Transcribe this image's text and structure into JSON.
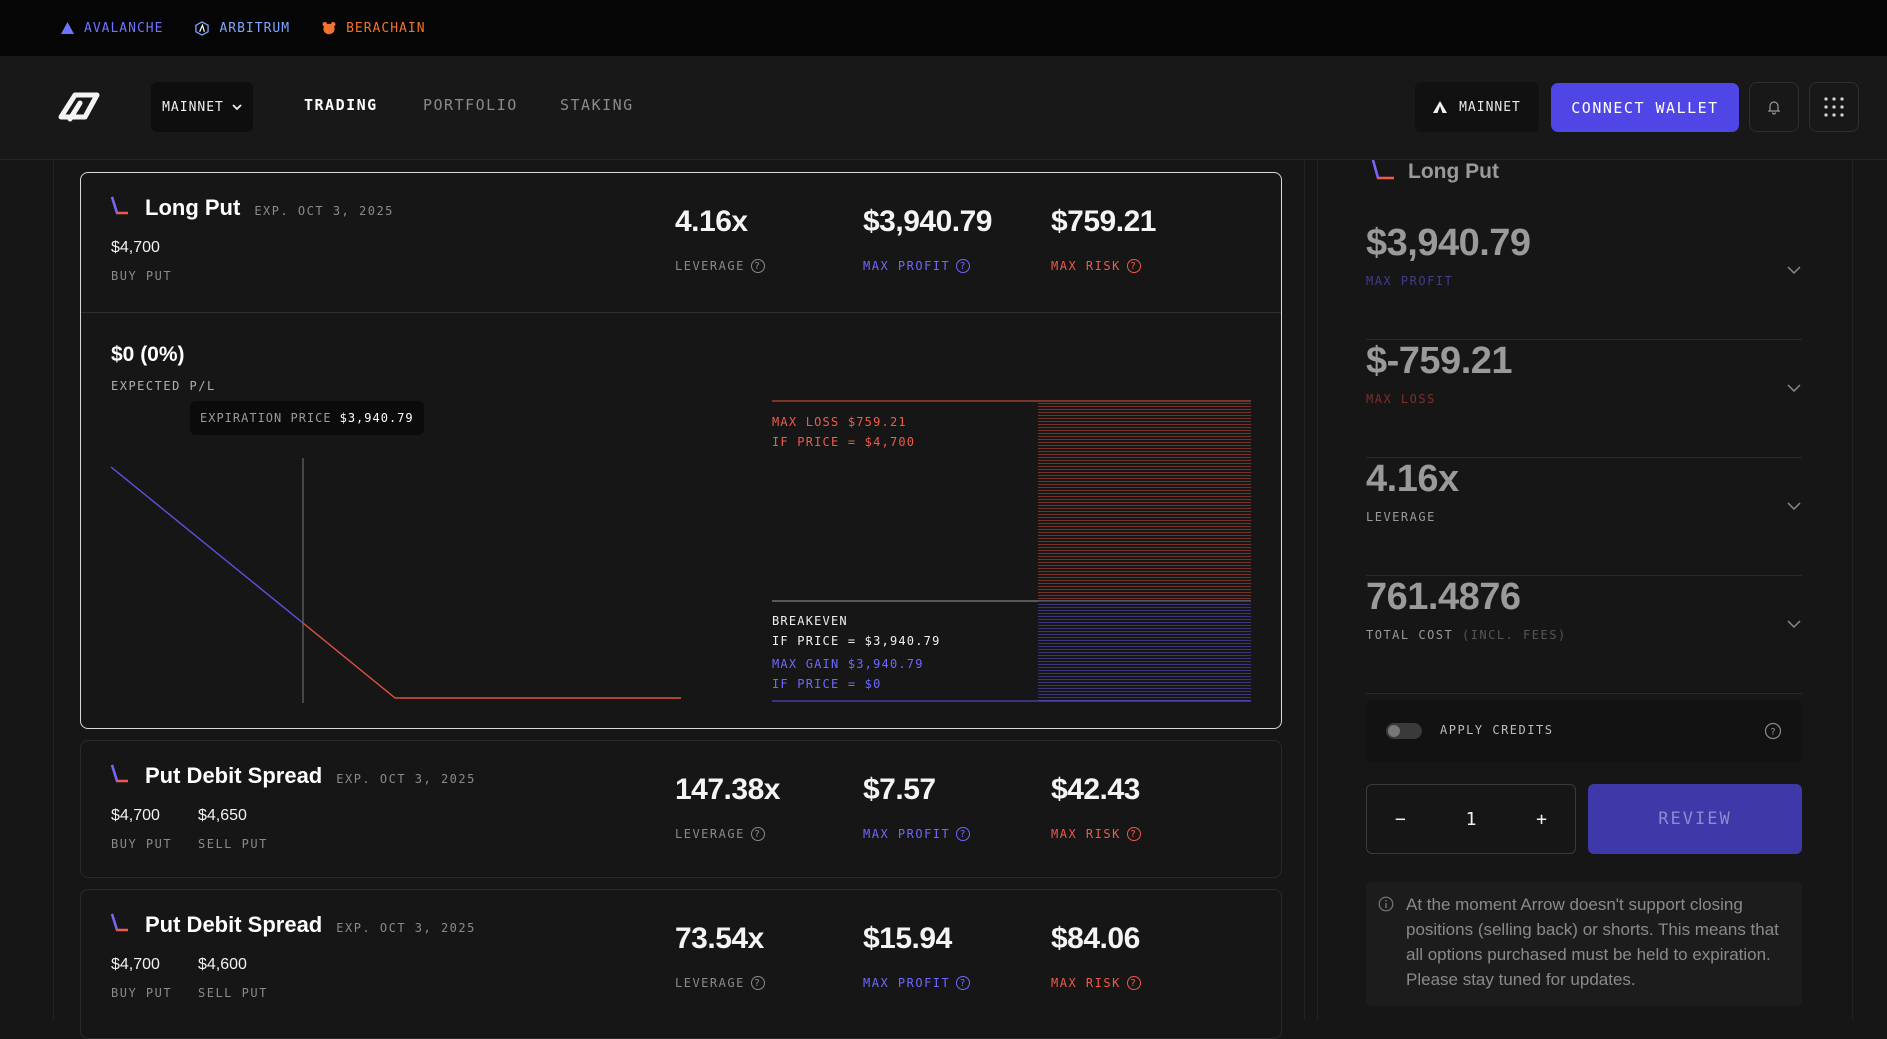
{
  "chains": [
    {
      "label": "AVALANCHE",
      "color": "#6f74ff"
    },
    {
      "label": "ARBITRUM",
      "color": "#7ea8ff"
    },
    {
      "label": "BERACHAIN",
      "color": "#f2742b"
    }
  ],
  "header": {
    "network_select": "MAINNET",
    "nav": [
      "TRADING",
      "PORTFOLIO",
      "STAKING"
    ],
    "network_badge": "MAINNET",
    "connect_label": "CONNECT WALLET"
  },
  "cards": [
    {
      "title": "Long Put",
      "expiry": "EXP. OCT 3, 2025",
      "legs": [
        {
          "strike": "$4,700",
          "type": "BUY PUT"
        }
      ],
      "leverage": "4.16x",
      "max_profit": "$3,940.79",
      "max_risk": "$759.21",
      "leverage_label": "LEVERAGE",
      "max_profit_label": "MAX PROFIT",
      "max_risk_label": "MAX RISK"
    },
    {
      "title": "Put Debit Spread",
      "expiry": "EXP. OCT 3, 2025",
      "legs": [
        {
          "strike": "$4,700",
          "type": "BUY PUT"
        },
        {
          "strike": "$4,650",
          "type": "SELL PUT"
        }
      ],
      "leverage": "147.38x",
      "max_profit": "$7.57",
      "max_risk": "$42.43",
      "leverage_label": "LEVERAGE",
      "max_profit_label": "MAX PROFIT",
      "max_risk_label": "MAX RISK"
    },
    {
      "title": "Put Debit Spread",
      "expiry": "EXP. OCT 3, 2025",
      "legs": [
        {
          "strike": "$4,700",
          "type": "BUY PUT"
        },
        {
          "strike": "$4,600",
          "type": "SELL PUT"
        }
      ],
      "leverage": "73.54x",
      "max_profit": "$15.94",
      "max_risk": "$84.06",
      "leverage_label": "LEVERAGE",
      "max_profit_label": "MAX PROFIT",
      "max_risk_label": "MAX RISK"
    }
  ],
  "chart": {
    "expected_pl": "$0 (0%)",
    "expected_pl_label": "EXPECTED P/L",
    "tooltip_label": "EXPIRATION PRICE",
    "tooltip_value": "$3,940.79",
    "max_loss_line1": "MAX LOSS $759.21",
    "max_loss_line2": "IF PRICE = $4,700",
    "breakeven_line1": "BREAKEVEN",
    "breakeven_line2": "IF PRICE = $3,940.79",
    "max_gain_line1": "MAX GAIN $3,940.79",
    "max_gain_line2": "IF PRICE = $0"
  },
  "panel": {
    "title": "Long Put",
    "max_profit": "$3,940.79",
    "max_profit_label": "MAX PROFIT",
    "max_loss": "$-759.21",
    "max_loss_label": "MAX LOSS",
    "leverage": "4.16x",
    "leverage_label": "LEVERAGE",
    "total_cost": "761.4876",
    "total_cost_label": "TOTAL COST",
    "total_cost_suffix": "(INCL. FEES)",
    "apply_credits": "APPLY CREDITS",
    "quantity": "1",
    "minus": "−",
    "plus": "+",
    "review": "REVIEW",
    "note": "At the moment Arrow doesn't support closing positions (selling back) or shorts. This means that all options purchased must be held to expiration. Please stay tuned for updates."
  },
  "colors": {
    "accent": "#4f46e5",
    "profit": "#6f68ff",
    "risk": "#f05a4a"
  }
}
